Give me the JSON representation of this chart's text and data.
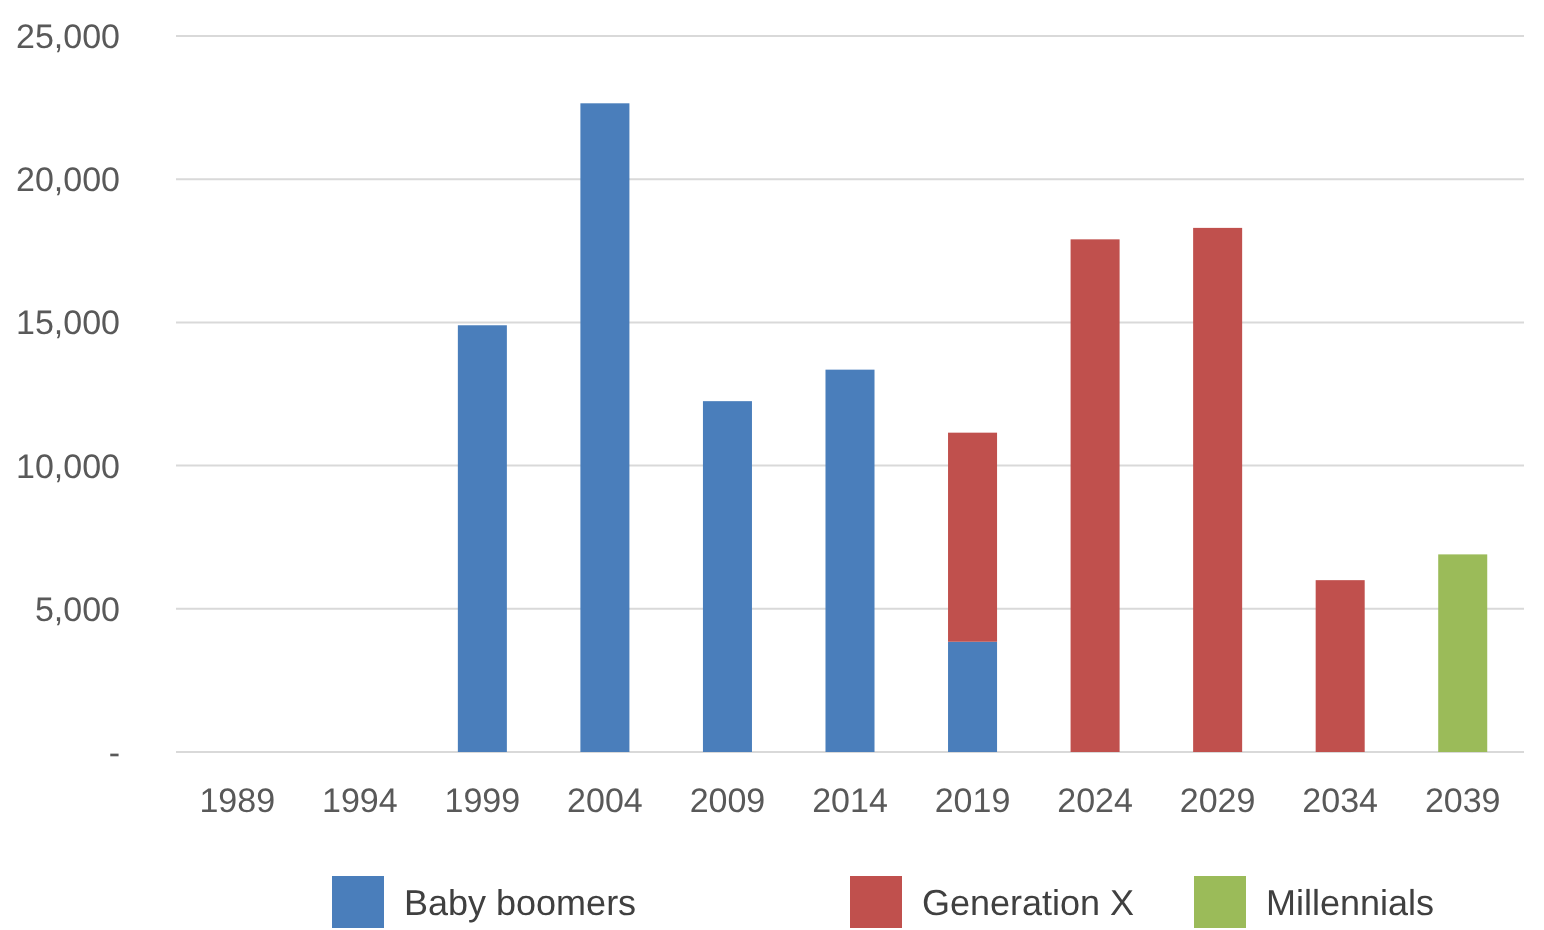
{
  "chart_data": {
    "type": "bar",
    "stacked": true,
    "categories": [
      "1989",
      "1994",
      "1999",
      "2004",
      "2009",
      "2014",
      "2019",
      "2024",
      "2029",
      "2034",
      "2039"
    ],
    "series": [
      {
        "name": "Baby boomers",
        "color": "#4a7ebb",
        "values": [
          0,
          0,
          14900,
          22650,
          12250,
          13350,
          3850,
          0,
          0,
          0,
          0
        ]
      },
      {
        "name": "Generation X",
        "color": "#c0504d",
        "values": [
          0,
          0,
          0,
          0,
          0,
          0,
          7300,
          17900,
          18300,
          6000,
          0
        ]
      },
      {
        "name": "Millennials",
        "color": "#9bbb59",
        "values": [
          0,
          0,
          0,
          0,
          0,
          0,
          0,
          0,
          0,
          0,
          6900
        ]
      }
    ],
    "ylim": [
      0,
      25000
    ],
    "yticks": [
      {
        "value": 0,
        "label": "-"
      },
      {
        "value": 5000,
        "label": "5,000"
      },
      {
        "value": 10000,
        "label": "10,000"
      },
      {
        "value": 15000,
        "label": "15,000"
      },
      {
        "value": 20000,
        "label": "20,000"
      },
      {
        "value": 25000,
        "label": "25,000"
      }
    ],
    "grid": "y",
    "legend": "bottom"
  }
}
